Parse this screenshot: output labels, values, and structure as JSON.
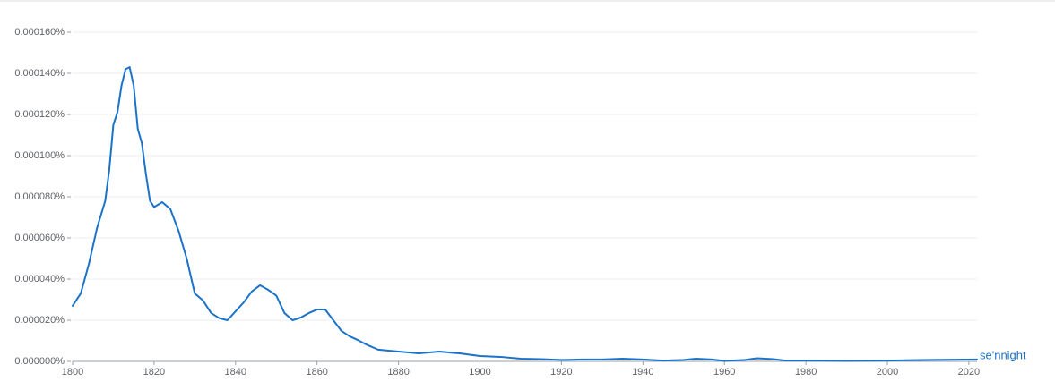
{
  "chart_data": {
    "type": "line",
    "x": [
      1800,
      1802,
      1804,
      1806,
      1808,
      1809,
      1810,
      1811,
      1812,
      1813,
      1814,
      1815,
      1816,
      1817,
      1818,
      1819,
      1820,
      1822,
      1824,
      1826,
      1828,
      1830,
      1832,
      1834,
      1836,
      1838,
      1840,
      1842,
      1844,
      1846,
      1848,
      1850,
      1852,
      1854,
      1856,
      1858,
      1860,
      1862,
      1864,
      1866,
      1868,
      1870,
      1872,
      1875,
      1880,
      1885,
      1890,
      1895,
      1900,
      1905,
      1910,
      1915,
      1920,
      1925,
      1930,
      1935,
      1940,
      1945,
      1950,
      1953,
      1957,
      1960,
      1965,
      1968,
      1972,
      1975,
      1980,
      1990,
      2000,
      2010,
      2022
    ],
    "series": [
      {
        "name": "se'nnight",
        "color": "#1a73c8",
        "values": [
          2.7e-05,
          3.3e-05,
          4.74e-05,
          6.48e-05,
          7.8e-05,
          9.3e-05,
          0.000115,
          0.000121,
          0.000134,
          0.000142,
          0.000143,
          0.000134,
          0.000113,
          0.000106,
          9.1e-05,
          7.8e-05,
          7.5e-05,
          7.74e-05,
          7.4e-05,
          6.35e-05,
          5e-05,
          3.3e-05,
          2.96e-05,
          2.35e-05,
          2.1e-05,
          2e-05,
          2.43e-05,
          2.87e-05,
          3.4e-05,
          3.7e-05,
          3.48e-05,
          3.2e-05,
          2.35e-05,
          2e-05,
          2.13e-05,
          2.35e-05,
          2.52e-05,
          2.52e-05,
          2e-05,
          1.48e-05,
          1.22e-05,
          1.04e-05,
          8.3e-06,
          5.7e-06,
          4.8e-06,
          3.9e-06,
          4.8e-06,
          3.9e-06,
          2.6e-06,
          2.2e-06,
          1.3e-06,
          1.1e-06,
          7e-07,
          9e-07,
          9e-07,
          1.3e-06,
          9e-07,
          4e-07,
          7e-07,
          1.3e-06,
          9e-07,
          2e-07,
          7e-07,
          1.5e-06,
          1.1e-06,
          4e-07,
          4e-07,
          2e-07,
          4e-07,
          7e-07,
          9e-07
        ]
      }
    ],
    "xlim": [
      1800,
      2022
    ],
    "xticks": [
      1800,
      1820,
      1840,
      1860,
      1880,
      1900,
      1920,
      1940,
      1960,
      1980,
      2000,
      2020
    ],
    "ylim": [
      0,
      0.00016
    ],
    "yticks": [
      {
        "value": 0,
        "label": "0.000000%"
      },
      {
        "value": 2e-05,
        "label": "0.000020%"
      },
      {
        "value": 4e-05,
        "label": "0.000040%"
      },
      {
        "value": 6e-05,
        "label": "0.000060%"
      },
      {
        "value": 8e-05,
        "label": "0.000080%"
      },
      {
        "value": 0.0001,
        "label": "0.000100%"
      },
      {
        "value": 0.00012,
        "label": "0.000120%"
      },
      {
        "value": 0.00014,
        "label": "0.000140%"
      },
      {
        "value": 0.00016,
        "label": "0.000160%"
      }
    ],
    "grid": true
  }
}
